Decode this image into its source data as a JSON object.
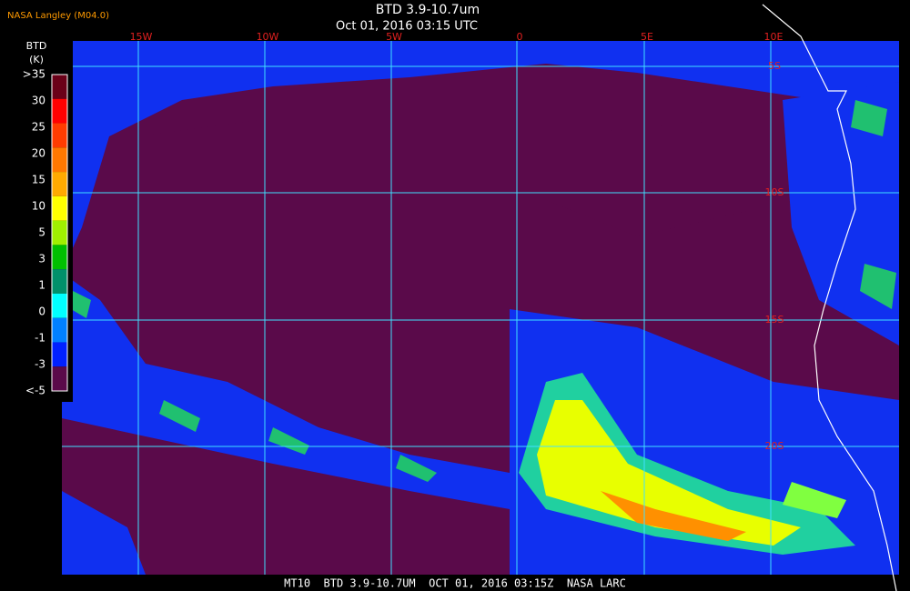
{
  "header": {
    "source": "NASA Langley (M04.0)",
    "title": "BTD 3.9-10.7um",
    "subtitle": "Oct 01, 2016 03:15 UTC"
  },
  "colorbar": {
    "title": "BTD",
    "units": "(K)",
    "labels": [
      ">35",
      "30",
      "25",
      "20",
      "15",
      "10",
      "5",
      "3",
      "1",
      "0",
      "-1",
      "-3",
      "<-5"
    ],
    "colors": [
      "#6a0018",
      "#ff0000",
      "#ff3c00",
      "#ff7800",
      "#ffaa00",
      "#ffff00",
      "#a0f000",
      "#00c000",
      "#00906a",
      "#00ffff",
      "#0080ff",
      "#0020ff",
      "#5a0a4a"
    ]
  },
  "grid": {
    "lon_labels": [
      "15W",
      "10W",
      "5W",
      "0",
      "5E",
      "10E"
    ],
    "lat_labels": [
      "5S",
      "10S",
      "15S",
      "20S"
    ]
  },
  "footer": "MT10  BTD 3.9-10.7UM  OCT 01, 2016 03:15Z  NASA LARC"
}
